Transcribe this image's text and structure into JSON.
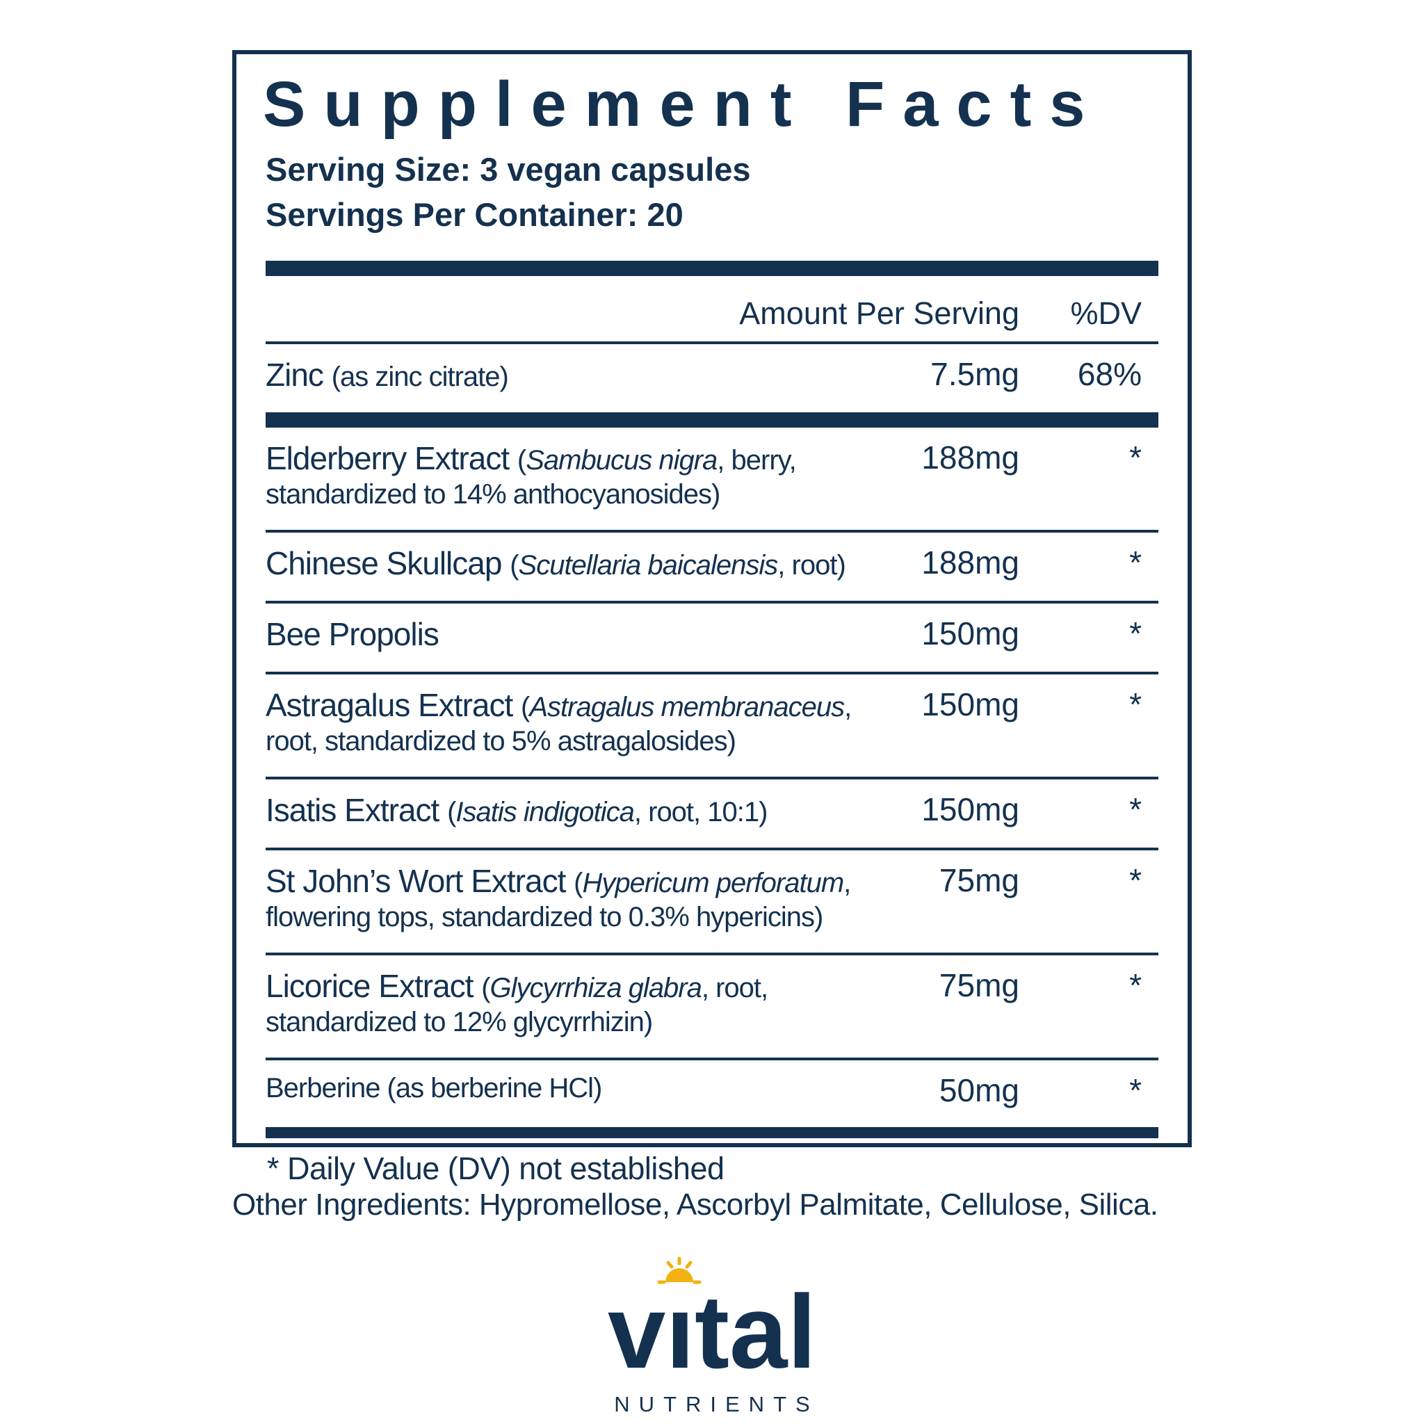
{
  "colors": {
    "navy": "#14314F",
    "gold": "#F2B212",
    "background": "#FFFFFF"
  },
  "panel": {
    "title": "Supplement Facts",
    "serving_size": "Serving Size: 3 vegan capsules",
    "servings_per_container": "Servings Per Container: 20",
    "columns": {
      "amount": "Amount Per Serving",
      "dv": "%DV"
    },
    "footnote": "* Daily Value (DV) not established"
  },
  "rows": [
    {
      "segments": [
        {
          "t": "Zinc ",
          "s": "main"
        },
        {
          "t": "(as zinc citrate)",
          "s": "detail"
        }
      ],
      "amount": "7.5mg",
      "dv": "68%",
      "sep": "thick"
    },
    {
      "segments": [
        {
          "t": "Elderberry Extract ",
          "s": "main"
        },
        {
          "t": "(",
          "s": "detail"
        },
        {
          "t": "Sambucus nigra",
          "s": "detail-italic"
        },
        {
          "t": ", berry,",
          "s": "detail"
        },
        {
          "br": true
        },
        {
          "t": "standardized to 14% anthocyanosides)",
          "s": "detail"
        }
      ],
      "amount": "188mg",
      "dv": "*",
      "sep": "thin"
    },
    {
      "segments": [
        {
          "t": "Chinese Skullcap ",
          "s": "main"
        },
        {
          "t": "(",
          "s": "detail"
        },
        {
          "t": "Scutellaria baicalensis",
          "s": "detail-italic"
        },
        {
          "t": ", root)",
          "s": "detail"
        }
      ],
      "amount": "188mg",
      "dv": "*",
      "sep": "thin"
    },
    {
      "segments": [
        {
          "t": "Bee Propolis",
          "s": "main"
        }
      ],
      "amount": "150mg",
      "dv": "*",
      "sep": "thin"
    },
    {
      "segments": [
        {
          "t": "Astragalus Extract ",
          "s": "main"
        },
        {
          "t": "(",
          "s": "detail"
        },
        {
          "t": "Astragalus membranaceus",
          "s": "detail-italic"
        },
        {
          "t": ",",
          "s": "detail"
        },
        {
          "br": true
        },
        {
          "t": "root, standardized to 5% astragalosides)",
          "s": "detail"
        }
      ],
      "amount": "150mg",
      "dv": "*",
      "sep": "thin"
    },
    {
      "segments": [
        {
          "t": "Isatis Extract ",
          "s": "main"
        },
        {
          "t": "(",
          "s": "detail"
        },
        {
          "t": "Isatis indigotica",
          "s": "detail-italic"
        },
        {
          "t": ", root, 10:1)",
          "s": "detail"
        }
      ],
      "amount": "150mg",
      "dv": "*",
      "sep": "thin"
    },
    {
      "segments": [
        {
          "t": "St John’s Wort Extract ",
          "s": "main"
        },
        {
          "t": "(",
          "s": "detail"
        },
        {
          "t": "Hypericum perforatum",
          "s": "detail-italic"
        },
        {
          "t": ",",
          "s": "detail"
        },
        {
          "br": true
        },
        {
          "t": "flowering tops, standardized to 0.3% hypericins)",
          "s": "detail"
        }
      ],
      "amount": "75mg",
      "dv": "*",
      "sep": "thin"
    },
    {
      "segments": [
        {
          "t": "Licorice Extract ",
          "s": "main"
        },
        {
          "t": "(",
          "s": "detail"
        },
        {
          "t": "Glycyrrhiza glabra",
          "s": "detail-italic"
        },
        {
          "t": ", root,",
          "s": "detail"
        },
        {
          "br": true
        },
        {
          "t": "standardized to 12% glycyrrhizin)",
          "s": "detail"
        }
      ],
      "amount": "75mg",
      "dv": "*",
      "sep": "thin"
    },
    {
      "segments": [
        {
          "t": "Berberine (as berberine HCl)",
          "s": "detail"
        }
      ],
      "amount": "50mg",
      "dv": "*",
      "sep": "none"
    }
  ],
  "other_ingredients": "Other Ingredients: Hypromellose, Ascorbyl Palmitate, Cellulose, Silica.",
  "logo": {
    "wordmark": "vıtal",
    "subtext": "NUTRIENTS"
  }
}
